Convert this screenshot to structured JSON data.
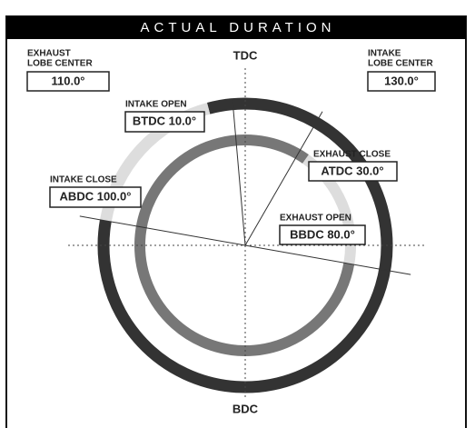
{
  "title": "ACTUAL DURATION",
  "tdc": "TDC",
  "bdc": "BDC",
  "fields": [
    {
      "label": [
        "EXHAUST",
        "LOBE CENTER"
      ],
      "value": "110.0°"
    },
    {
      "label": [
        "INTAKE",
        "LOBE CENTER"
      ],
      "value": "130.0°"
    },
    {
      "label": [
        "INTAKE OPEN"
      ],
      "value": "BTDC 10.0°"
    },
    {
      "label": [
        "EXHAUST CLOSE"
      ],
      "value": "ATDC 30.0°"
    },
    {
      "label": [
        "INTAKE CLOSE"
      ],
      "value": "ABDC 100.0°"
    },
    {
      "label": [
        "EXHAUST OPEN"
      ],
      "value": "BBDC 80.0°"
    }
  ]
}
